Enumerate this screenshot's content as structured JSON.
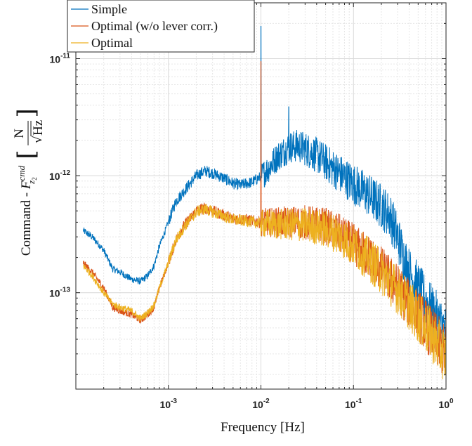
{
  "chart_data": {
    "type": "line",
    "xlabel": "Frequency [Hz]",
    "ylabel": "Command - F_{z2}^{cmd} [N/√Hz]",
    "ylabel_parts": {
      "prefix": "Command - ",
      "symbol": "F",
      "subscript": "z",
      "subsubscript": "2",
      "superscript": "cmd",
      "unit_num": "N",
      "unit_den": "Hz"
    },
    "x_scale": "log",
    "y_scale": "log",
    "xlim": [
      0.0001,
      1
    ],
    "ylim": [
      1.5e-14,
      3e-11
    ],
    "grid": true,
    "legend_position": "top-left",
    "x_ticks": [
      {
        "value": 0.001,
        "base": "10",
        "exp": "-3"
      },
      {
        "value": 0.01,
        "base": "10",
        "exp": "-2"
      },
      {
        "value": 0.1,
        "base": "10",
        "exp": "-1"
      },
      {
        "value": 1,
        "base": "10",
        "exp": "0"
      }
    ],
    "y_ticks": [
      {
        "value": 1e-13,
        "base": "10",
        "exp": "-13"
      },
      {
        "value": 1e-12,
        "base": "10",
        "exp": "-12"
      },
      {
        "value": 1e-11,
        "base": "10",
        "exp": "-11"
      }
    ],
    "series": [
      {
        "name": "Simple",
        "color": "#0072BD",
        "points": [
          [
            0.00012,
            3.4e-13
          ],
          [
            0.00015,
            3e-13
          ],
          [
            0.0002,
            2.3e-13
          ],
          [
            0.00025,
            1.6e-13
          ],
          [
            0.0003,
            1.5e-13
          ],
          [
            0.0004,
            1.3e-13
          ],
          [
            0.0005,
            1.25e-13
          ],
          [
            0.0006,
            1.4e-13
          ],
          [
            0.0007,
            1.7e-13
          ],
          [
            0.0008,
            2.5e-13
          ],
          [
            0.001,
            4e-13
          ],
          [
            0.0012,
            6e-13
          ],
          [
            0.0015,
            7.5e-13
          ],
          [
            0.0018,
            9e-13
          ],
          [
            0.002,
            1e-12
          ],
          [
            0.0025,
            1.1e-12
          ],
          [
            0.003,
            1.05e-12
          ],
          [
            0.004,
            9.5e-13
          ],
          [
            0.005,
            8.6e-13
          ],
          [
            0.006,
            8.3e-13
          ],
          [
            0.008,
            8.8e-13
          ],
          [
            0.01,
            9.8e-13
          ],
          [
            0.012,
            1.15e-12
          ],
          [
            0.015,
            1.45e-12
          ],
          [
            0.02,
            1.75e-12
          ],
          [
            0.025,
            1.8e-12
          ],
          [
            0.03,
            1.7e-12
          ],
          [
            0.04,
            1.5e-12
          ],
          [
            0.05,
            1.3e-12
          ],
          [
            0.07,
            1.05e-12
          ],
          [
            0.1,
            8.5e-13
          ],
          [
            0.15,
            6.7e-13
          ],
          [
            0.2,
            5.5e-13
          ],
          [
            0.25,
            4.5e-13
          ],
          [
            0.3,
            3e-13
          ],
          [
            0.35,
            2e-13
          ],
          [
            0.4,
            1.5e-13
          ],
          [
            0.5,
            1.1e-13
          ],
          [
            0.6,
            8.5e-14
          ],
          [
            0.8,
            6e-14
          ],
          [
            1,
            4.5e-14
          ]
        ],
        "peaks": [
          [
            0.01,
            1.9e-11
          ],
          [
            0.02,
            3.9e-12
          ]
        ]
      },
      {
        "name": "Optimal (w/o lever corr.)",
        "color": "#D95319",
        "points": [
          [
            0.00012,
            1.8e-13
          ],
          [
            0.00015,
            1.5e-13
          ],
          [
            0.0002,
            1.1e-13
          ],
          [
            0.00025,
            7.5e-14
          ],
          [
            0.0003,
            7e-14
          ],
          [
            0.0004,
            6.5e-14
          ],
          [
            0.0005,
            5.8e-14
          ],
          [
            0.0006,
            6.5e-14
          ],
          [
            0.0007,
            7.5e-14
          ],
          [
            0.0008,
            1.1e-13
          ],
          [
            0.001,
            1.8e-13
          ],
          [
            0.0012,
            2.8e-13
          ],
          [
            0.0015,
            3.8e-13
          ],
          [
            0.0018,
            4.5e-13
          ],
          [
            0.002,
            5e-13
          ],
          [
            0.0025,
            5.3e-13
          ],
          [
            0.003,
            5e-13
          ],
          [
            0.004,
            4.6e-13
          ],
          [
            0.005,
            4.3e-13
          ],
          [
            0.007,
            4.2e-13
          ],
          [
            0.01,
            4e-13
          ],
          [
            0.02,
            4e-13
          ],
          [
            0.03,
            4e-13
          ],
          [
            0.05,
            3.7e-13
          ],
          [
            0.07,
            3.2e-13
          ],
          [
            0.1,
            2.6e-13
          ],
          [
            0.15,
            2e-13
          ],
          [
            0.2,
            1.6e-13
          ],
          [
            0.3,
            1.1e-13
          ],
          [
            0.4,
            8e-14
          ],
          [
            0.5,
            6.5e-14
          ],
          [
            0.7,
            4.5e-14
          ],
          [
            1,
            3e-14
          ]
        ],
        "peaks": [
          [
            0.01,
            9.5e-12
          ]
        ]
      },
      {
        "name": "Optimal",
        "color": "#EDB120",
        "points": [
          [
            0.00012,
            1.7e-13
          ],
          [
            0.00015,
            1.4e-13
          ],
          [
            0.0002,
            1e-13
          ],
          [
            0.00025,
            8e-14
          ],
          [
            0.0003,
            7.5e-14
          ],
          [
            0.0004,
            7e-14
          ],
          [
            0.0005,
            6e-14
          ],
          [
            0.0006,
            6.8e-14
          ],
          [
            0.0007,
            7.8e-14
          ],
          [
            0.0008,
            1.1e-13
          ],
          [
            0.001,
            1.8e-13
          ],
          [
            0.0012,
            2.8e-13
          ],
          [
            0.0015,
            3.7e-13
          ],
          [
            0.0018,
            4.4e-13
          ],
          [
            0.002,
            4.9e-13
          ],
          [
            0.0025,
            5.2e-13
          ],
          [
            0.003,
            4.9e-13
          ],
          [
            0.004,
            4.5e-13
          ],
          [
            0.005,
            4.2e-13
          ],
          [
            0.007,
            4.1e-13
          ],
          [
            0.01,
            3.9e-13
          ],
          [
            0.02,
            3.8e-13
          ],
          [
            0.03,
            3.8e-13
          ],
          [
            0.05,
            3.5e-13
          ],
          [
            0.07,
            3.1e-13
          ],
          [
            0.1,
            2.5e-13
          ],
          [
            0.15,
            1.9e-13
          ],
          [
            0.2,
            1.5e-13
          ],
          [
            0.3,
            1.05e-13
          ],
          [
            0.4,
            7.8e-14
          ],
          [
            0.5,
            6.2e-14
          ],
          [
            0.7,
            4.3e-14
          ],
          [
            1,
            2.8e-14
          ]
        ],
        "peaks": []
      }
    ]
  }
}
